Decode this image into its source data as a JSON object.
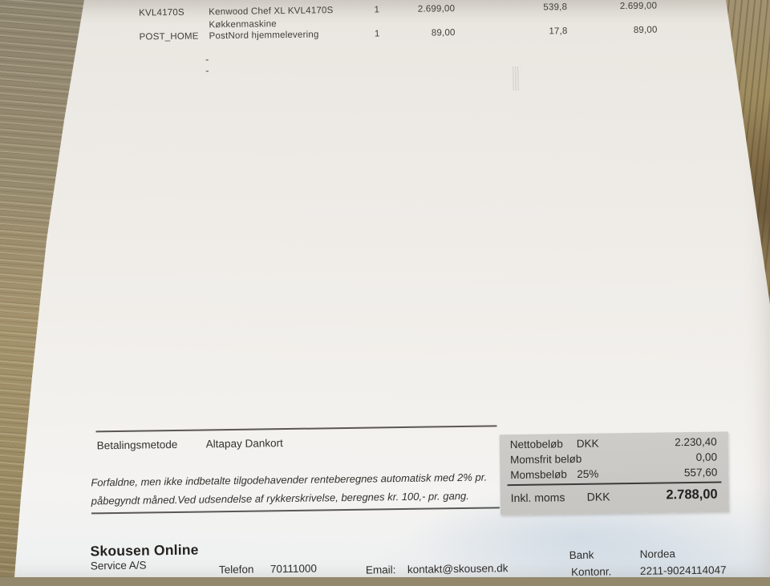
{
  "line_items": {
    "rows": [
      {
        "code": "KVL4170S",
        "description": "Kenwood Chef XL KVL4170S",
        "description2": "Køkkenmaskine",
        "qty": "1",
        "price": "2.699,00",
        "weight": "539,8",
        "total": "2.699,00"
      },
      {
        "code": "POST_HOME",
        "description": "PostNord hjemmelevering",
        "description2": "",
        "qty": "1",
        "price": "89,00",
        "weight": "17,8",
        "total": "89,00"
      }
    ],
    "dash1": "-",
    "dash2": "-"
  },
  "payment": {
    "method_label": "Betalingsmetode",
    "method_value": "Altapay Dankort",
    "terms_line1": "Forfaldne, men ikke indbetalte tilgodehavender renteberegnes automatisk med 2% pr.",
    "terms_line2": "påbegyndt måned.Ved udsendelse af rykkerskrivelse, beregnes kr. 100,- pr. gang."
  },
  "totals": {
    "rows": [
      {
        "label": "Nettobeløb",
        "currency": "DKK",
        "value": "2.230,40"
      },
      {
        "label": "Momsfrit beløb",
        "currency": "",
        "value": "0,00"
      },
      {
        "label": "Momsbeløb",
        "currency": "25%",
        "value": "557,60"
      }
    ],
    "grand": {
      "label": "Inkl. moms",
      "currency": "DKK",
      "value": "2.788,00"
    }
  },
  "footer": {
    "company_name": "Skousen Online",
    "company_type": "Service A/S",
    "phone_label": "Telefon",
    "phone_number": "70111000",
    "email_label": "Email:",
    "email_address": "kontakt@skousen.dk",
    "bank_label": "Bank",
    "bank_name": "Nordea",
    "account_label": "Kontonr.",
    "account_number": "2211-9024114047"
  },
  "colors": {
    "paper": "#f0eee9",
    "wood": "#9a8c68",
    "totals_box": "#cbcac6",
    "ink": "#33312d"
  }
}
